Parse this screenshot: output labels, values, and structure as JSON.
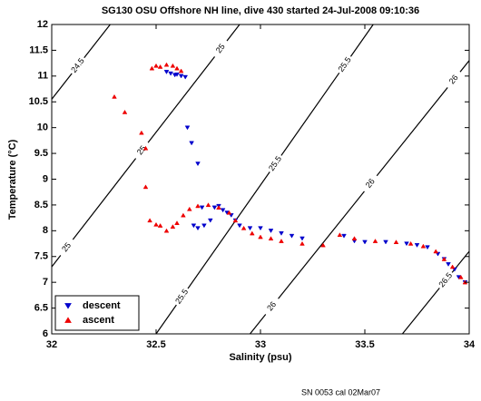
{
  "chart_data": {
    "type": "scatter",
    "title": "SG130 OSU Offshore NH line, dive 430 started 24-Jul-2008 09:10:36",
    "x_label": "Salinity (psu)",
    "y_label": "Temperature (°C)",
    "footnote": "SN 0053 cal 02Mar07",
    "xlim": [
      32,
      34
    ],
    "ylim": [
      6,
      12
    ],
    "xticks": [
      32,
      32.5,
      33,
      33.5,
      34
    ],
    "yticks": [
      6,
      6.5,
      7,
      7.5,
      8,
      8.5,
      9,
      9.5,
      10,
      10.5,
      11,
      11.5,
      12
    ],
    "legend_position": "lower left",
    "contours": [
      {
        "level": 24.5,
        "x": [
          32,
          32.28
        ],
        "y": [
          10.55,
          12
        ]
      },
      {
        "level": 25,
        "x": [
          32,
          32.9
        ],
        "y": [
          7.3,
          12
        ]
      },
      {
        "level": 25.5,
        "x": [
          32.5,
          33.54
        ],
        "y": [
          6,
          12
        ]
      },
      {
        "level": 26,
        "x": [
          32.95,
          34
        ],
        "y": [
          6,
          11.3
        ]
      },
      {
        "level": 26.5,
        "x": [
          33.68,
          34
        ],
        "y": [
          6,
          7.6
        ]
      }
    ],
    "series": [
      {
        "name": "descent",
        "color": "#0000cc",
        "marker": "triangle-down",
        "x": [
          32.55,
          32.57,
          32.59,
          32.6,
          32.62,
          32.64,
          32.65,
          32.67,
          32.7,
          32.72,
          32.68,
          32.7,
          32.73,
          32.76,
          32.78,
          32.8,
          32.82,
          32.84,
          32.86,
          32.88,
          32.9,
          32.95,
          33.0,
          33.05,
          33.1,
          33.15,
          33.2,
          33.4,
          33.45,
          33.5,
          33.6,
          33.7,
          33.75,
          33.8,
          33.85,
          33.88,
          33.9,
          33.93,
          33.95,
          33.98
        ],
        "values": [
          11.08,
          11.05,
          11.02,
          11.03,
          11.0,
          10.98,
          10.0,
          9.7,
          9.3,
          8.45,
          8.1,
          8.05,
          8.1,
          8.2,
          8.45,
          8.48,
          8.4,
          8.35,
          8.3,
          8.2,
          8.1,
          8.05,
          8.05,
          8.0,
          7.95,
          7.9,
          7.85,
          7.9,
          7.8,
          7.78,
          7.78,
          7.75,
          7.72,
          7.68,
          7.55,
          7.45,
          7.35,
          7.25,
          7.1,
          7.0
        ]
      },
      {
        "name": "ascent",
        "color": "#ee0000",
        "marker": "triangle-up",
        "x": [
          32.3,
          32.35,
          32.43,
          32.45,
          32.48,
          32.5,
          32.52,
          32.55,
          32.58,
          32.6,
          32.62,
          32.45,
          32.47,
          32.5,
          32.52,
          32.55,
          32.58,
          32.6,
          32.63,
          32.66,
          32.7,
          32.75,
          32.8,
          32.85,
          32.88,
          32.92,
          32.96,
          33.0,
          33.05,
          33.1,
          33.2,
          33.3,
          33.38,
          33.45,
          33.55,
          33.65,
          33.72,
          33.78,
          33.84,
          33.88,
          33.92,
          33.96,
          33.98
        ],
        "values": [
          10.6,
          10.3,
          9.9,
          9.6,
          11.15,
          11.2,
          11.18,
          11.22,
          11.2,
          11.15,
          11.1,
          8.85,
          8.2,
          8.12,
          8.1,
          8.0,
          8.08,
          8.15,
          8.3,
          8.42,
          8.48,
          8.5,
          8.45,
          8.35,
          8.2,
          8.05,
          7.95,
          7.88,
          7.85,
          7.8,
          7.75,
          7.72,
          7.92,
          7.85,
          7.8,
          7.78,
          7.75,
          7.7,
          7.6,
          7.45,
          7.3,
          7.1,
          7.0
        ]
      }
    ]
  }
}
